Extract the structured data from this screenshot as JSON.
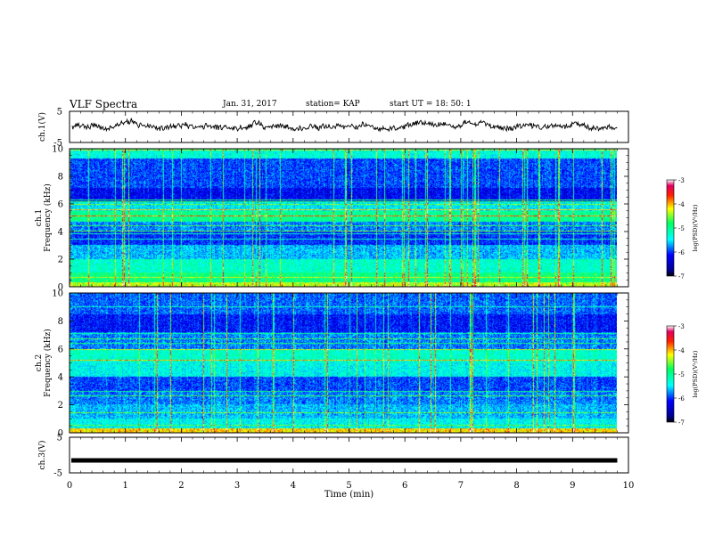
{
  "header": {
    "title": "VLF Spectra",
    "date": "Jan. 31, 2017",
    "station": "station= KAP",
    "start": "start  UT =  18: 50: 1"
  },
  "chart_data": [
    {
      "type": "line",
      "panel": "ch1-waveform",
      "ylabel": "ch.1(V)",
      "y_ticks": [
        "5",
        "-5"
      ],
      "ylim": [
        -5,
        5
      ],
      "xlim": [
        0,
        10
      ],
      "series_style": "noisy baseband amplitude trace, roughly between -3 and 3 V, visible from 0 to ~9.8 min"
    },
    {
      "type": "heatmap",
      "panel": "ch1-spectrogram",
      "ylabel": "ch.1 Frequency (kHz)",
      "y_ticks": [
        "0",
        "2",
        "4",
        "6",
        "8",
        "10"
      ],
      "ylim": [
        0,
        10
      ],
      "xlim": [
        0,
        9.8
      ],
      "colorbar": {
        "label": "log(PSD)(V²/Hz)",
        "ticks": [
          "-3",
          "-4",
          "-5",
          "-6",
          "-7"
        ],
        "range": [
          -7,
          -3
        ],
        "colormap": "jet"
      }
    },
    {
      "type": "heatmap",
      "panel": "ch2-spectrogram",
      "ylabel": "ch.2 Frequency (kHz)",
      "y_ticks": [
        "0",
        "2",
        "4",
        "6",
        "8",
        "10"
      ],
      "ylim": [
        0,
        10
      ],
      "xlim": [
        0,
        9.8
      ],
      "colorbar": {
        "label": "log(PSD)(V²/Hz)",
        "ticks": [
          "-3",
          "-4",
          "-5",
          "-6",
          "-7"
        ],
        "range": [
          -7,
          -3
        ],
        "colormap": "jet"
      }
    },
    {
      "type": "line",
      "panel": "ch3-waveform",
      "ylabel": "ch.3(V)",
      "y_ticks": [
        "5",
        "-5"
      ],
      "ylim": [
        -5,
        5
      ],
      "xlim": [
        0,
        10
      ],
      "series_style": "flat thick line near -1.5 V from 0 to ~9.8 min"
    }
  ],
  "x_axis": {
    "label": "Time (min)",
    "ticks": [
      "0",
      "1",
      "2",
      "3",
      "4",
      "5",
      "6",
      "7",
      "8",
      "9",
      "10"
    ],
    "range": [
      0,
      10
    ]
  }
}
